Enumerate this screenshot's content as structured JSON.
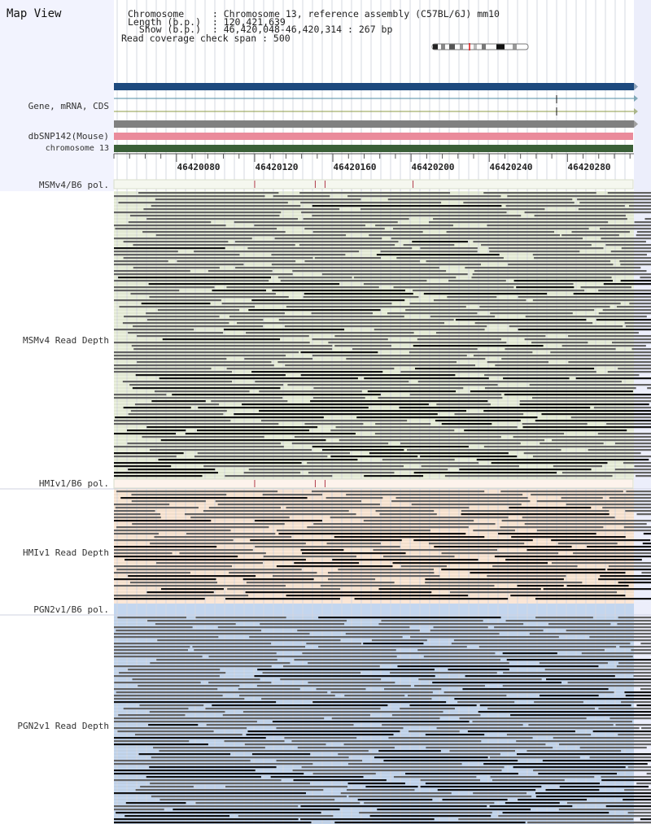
{
  "header": {
    "title": "Map View",
    "info": [
      "Chromosome     : Chromosome 13, reference assembly (C57BL/6J) mm10",
      "Length (b.p.)  : 120,421,639",
      "  Show (b.p.)  : 46,420,048-46,420,314 : 267 bp",
      "Read coverage check span : 500"
    ]
  },
  "tracks": {
    "gene": "Gene, mRNA, CDS",
    "dbsnp": "dbSNP142(Mouse)",
    "chromosome": "chromosome 13",
    "msm_pol": "MSMv4/B6 pol.",
    "msm_depth": "MSMv4 Read Depth",
    "hmi_pol": "HMIv1/B6 pol.",
    "hmi_depth": "HMIv1 Read Depth",
    "pgn_pol": "PGN2v1/B6 pol.",
    "pgn_depth": "PGN2v1 Read Depth"
  },
  "ruler": {
    "range": [
      46420048,
      46420314
    ],
    "ticks": [
      "46420080",
      "46420120",
      "46420160",
      "46420200",
      "46420240",
      "46420280"
    ]
  },
  "colors": {
    "gene_bar": "#1d4a7e",
    "dbsnp_bar": "#ea8b9b",
    "chromosome_bar": "#3a5f37",
    "msm_bg": "#e9efdc",
    "hmi_bg": "#fbe6d5",
    "pgn_bg": "#c3d6ef",
    "read_light": "#636363",
    "read_dark": "#111111",
    "snp_mark": "#b03a4a"
  },
  "snp_positions": {
    "msm": [
      46420120,
      46420151,
      46420156,
      46420201
    ],
    "hmi": [
      46420120,
      46420151,
      46420156
    ]
  }
}
